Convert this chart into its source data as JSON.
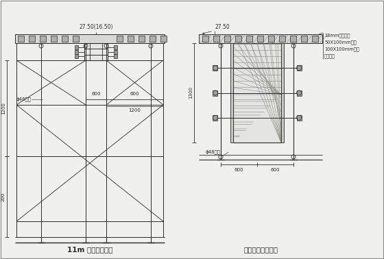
{
  "bg_color": "#f0f0ec",
  "line_color": "#2a2a2a",
  "title1": "11m 高模架示意图",
  "title2": "梁横向支模大样图",
  "label_top": "27.50(16.50)",
  "label_top2": "27.50",
  "label_phi48_left": "ϕ48钢管",
  "label_phi48_right": "ϕ48钢管",
  "label_600a": "600",
  "label_600b": "600",
  "label_1200h": "1200",
  "label_1200v": "1200",
  "label_200": "200",
  "label_1300": "1300",
  "note1": "18mm厚九夹板",
  "note2": "50X100mm方木",
  "note3": "100X100mm方木",
  "note4": "可调顶托"
}
